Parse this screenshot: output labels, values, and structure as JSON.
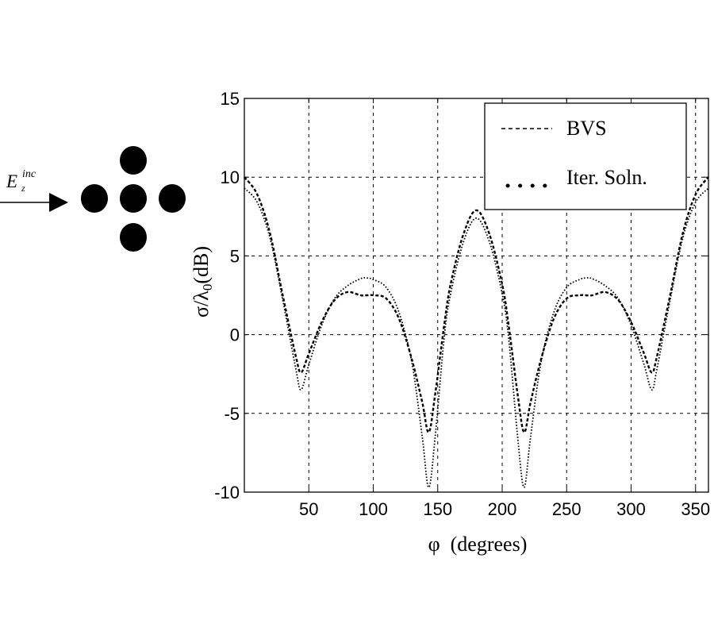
{
  "diagram": {
    "incident_field_label": "E",
    "incident_field_sub": "z",
    "incident_field_sup": "inc",
    "cylinders": 5
  },
  "chart_data": {
    "type": "line",
    "title": "",
    "xlabel": "φ  (degrees)",
    "ylabel_main": "σ/λ",
    "ylabel_sub": "0",
    "ylabel_unit": "(dB)",
    "xlim": [
      0,
      360
    ],
    "ylim": [
      -10,
      15
    ],
    "grid": true,
    "legend_position": "upper right",
    "x_ticks": [
      50,
      100,
      150,
      200,
      250,
      300,
      350
    ],
    "y_ticks": [
      -10,
      -5,
      0,
      5,
      10,
      15
    ],
    "x": [
      0,
      10,
      20,
      30,
      40,
      44,
      50,
      60,
      70,
      80,
      90,
      95,
      100,
      110,
      120,
      130,
      138,
      143,
      148,
      155,
      160,
      170,
      180,
      190,
      200,
      205,
      212,
      217,
      222,
      230,
      240,
      250,
      260,
      265,
      270,
      280,
      290,
      300,
      310,
      316,
      320,
      330,
      340,
      350,
      360
    ],
    "series": [
      {
        "name": "BVS",
        "style": "dashed",
        "values": [
          10.0,
          8.9,
          6.4,
          2.4,
          -1.4,
          -2.4,
          -1.2,
          0.8,
          2.2,
          2.7,
          2.5,
          2.5,
          2.5,
          2.3,
          1.0,
          -1.6,
          -4.3,
          -6.2,
          -3.8,
          0.6,
          3.2,
          6.4,
          7.9,
          6.4,
          3.2,
          0.6,
          -3.8,
          -6.2,
          -4.3,
          -1.6,
          1.0,
          2.3,
          2.5,
          2.5,
          2.5,
          2.7,
          2.2,
          0.8,
          -1.2,
          -2.4,
          -1.4,
          2.4,
          6.4,
          8.9,
          10.0
        ]
      },
      {
        "name": "Iter. Soln.",
        "style": "dotted",
        "values": [
          9.3,
          8.4,
          6.1,
          2.1,
          -2.2,
          -3.5,
          -1.9,
          0.6,
          2.3,
          3.1,
          3.55,
          3.6,
          3.5,
          3.0,
          1.4,
          -1.8,
          -6.5,
          -9.7,
          -6.5,
          -0.2,
          2.6,
          5.9,
          7.4,
          5.9,
          2.6,
          -0.2,
          -6.5,
          -9.7,
          -6.5,
          -1.8,
          1.4,
          3.0,
          3.5,
          3.6,
          3.55,
          3.1,
          2.3,
          0.6,
          -1.9,
          -3.5,
          -2.2,
          2.1,
          6.1,
          8.4,
          9.3
        ]
      }
    ]
  }
}
